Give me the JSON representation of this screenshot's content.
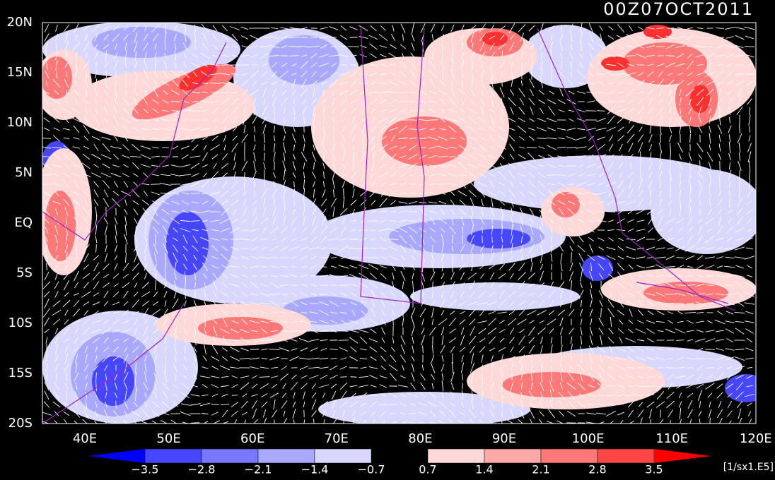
{
  "title": "00Z07OCT2011",
  "lat_labels": [
    "20N",
    "15N",
    "10N",
    "5N",
    "EQ",
    "5S",
    "10S",
    "15S",
    "20S"
  ],
  "lon_labels": [
    "40E",
    "50E",
    "60E",
    "70E",
    "80E",
    "90E",
    "100E",
    "110E",
    "120E"
  ],
  "colorbar": {
    "labels": [
      "−3.5",
      "−2.8",
      "−2.1",
      "−1.4",
      "−0.7",
      "0.7",
      "1.4",
      "2.1",
      "2.8",
      "3.5"
    ],
    "colors": [
      "#0000ff",
      "#4646ff",
      "#7878ff",
      "#a8a8ff",
      "#d8d8ff",
      "#000000",
      "#ffd8d8",
      "#ffa8a8",
      "#ff7878",
      "#ff4646",
      "#ff0000"
    ],
    "units": "[1/sx1.E5]"
  }
}
